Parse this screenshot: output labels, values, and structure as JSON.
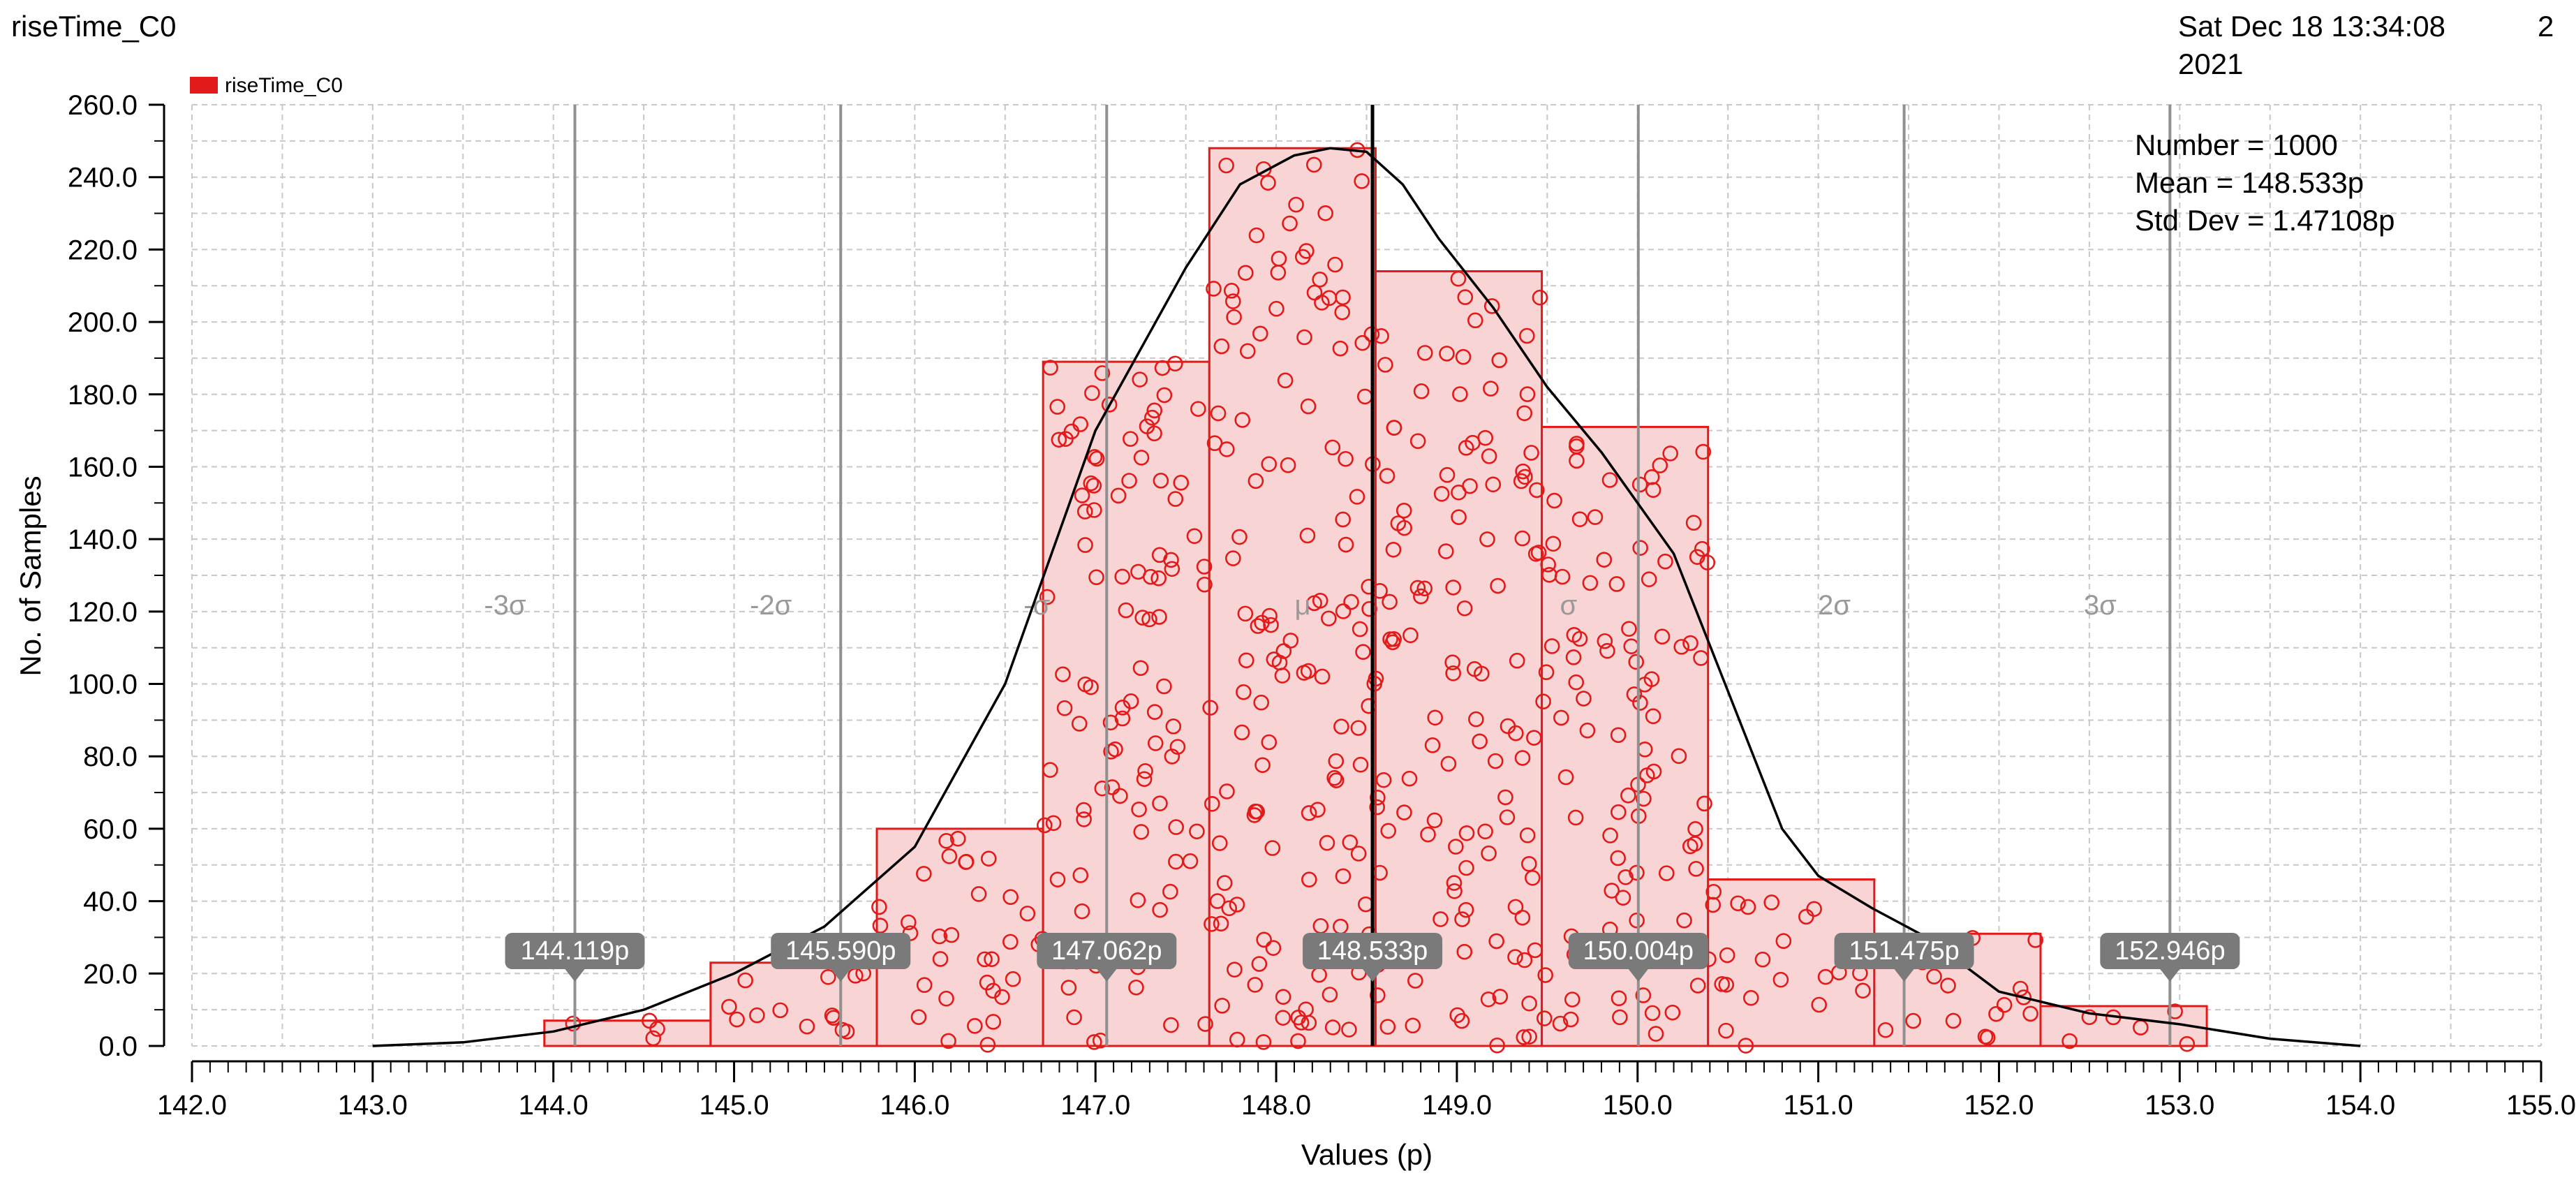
{
  "header": {
    "title": "riseTime_C0",
    "datetime_line1": "Sat Dec 18 13:34:08",
    "datetime_line2": "2021",
    "page_number": "2"
  },
  "stats": {
    "number": "Number = 1000",
    "mean": "Mean = 148.533p",
    "std_dev": "Std Dev = 1.47108p"
  },
  "colors": {
    "bar_fill": "#f8d4d4",
    "bar_stroke": "#e31a1a",
    "sample": "#e31a1a",
    "curve": "#000000",
    "sigma_line": "#909090",
    "mean_line": "#000000",
    "flag": "#7a7a7a"
  },
  "chart_data": {
    "type": "bar",
    "xlabel": "Values (p)",
    "ylabel": "No. of Samples",
    "xlim": [
      142.0,
      155.0
    ],
    "ylim": [
      0,
      260
    ],
    "x_ticks": [
      "142.0",
      "143.0",
      "144.0",
      "145.0",
      "146.0",
      "147.0",
      "148.0",
      "149.0",
      "150.0",
      "151.0",
      "152.0",
      "153.0",
      "154.0",
      "155.0"
    ],
    "y_ticks": [
      "0.0",
      "20.0",
      "40.0",
      "60.0",
      "80.0",
      "100.0",
      "120.0",
      "140.0",
      "160.0",
      "180.0",
      "200.0",
      "220.0",
      "240.0",
      "260.0"
    ],
    "legend": {
      "label": "riseTime_C0",
      "placement": "top-left"
    },
    "grid": true,
    "bins": [
      {
        "start": 143.95,
        "end": 144.87,
        "count": 7
      },
      {
        "start": 144.87,
        "end": 145.79,
        "count": 23
      },
      {
        "start": 145.79,
        "end": 146.71,
        "count": 60
      },
      {
        "start": 146.71,
        "end": 147.63,
        "count": 189
      },
      {
        "start": 147.63,
        "end": 148.55,
        "count": 248
      },
      {
        "start": 148.55,
        "end": 149.47,
        "count": 214
      },
      {
        "start": 149.47,
        "end": 150.39,
        "count": 171
      },
      {
        "start": 150.39,
        "end": 151.31,
        "count": 46
      },
      {
        "start": 151.31,
        "end": 152.23,
        "count": 31
      },
      {
        "start": 152.23,
        "end": 153.15,
        "count": 11
      }
    ],
    "density_curve": {
      "x": [
        143.0,
        143.5,
        144.0,
        144.5,
        145.0,
        145.5,
        146.0,
        146.5,
        147.0,
        147.5,
        147.8,
        148.1,
        148.3,
        148.5,
        148.7,
        148.9,
        149.2,
        149.5,
        149.8,
        150.2,
        150.5,
        150.8,
        151.0,
        151.3,
        151.6,
        152.0,
        152.5,
        153.0,
        153.5,
        154.0
      ],
      "y": [
        0,
        1,
        4,
        10,
        20,
        33,
        55,
        100,
        170,
        215,
        238,
        246,
        248,
        247,
        238,
        223,
        204,
        182,
        164,
        136,
        98,
        60,
        47,
        38,
        30,
        15,
        9,
        6,
        2,
        0
      ]
    },
    "sigma_markers": [
      {
        "label": "-3σ",
        "value": 144.119,
        "flag": "144.119p"
      },
      {
        "label": "-2σ",
        "value": 145.59,
        "flag": "145.590p"
      },
      {
        "label": "-σ",
        "value": 147.062,
        "flag": "147.062p"
      },
      {
        "label": "μ",
        "value": 148.533,
        "flag": "148.533p"
      },
      {
        "label": "σ",
        "value": 150.004,
        "flag": "150.004p"
      },
      {
        "label": "2σ",
        "value": 151.475,
        "flag": "151.475p"
      },
      {
        "label": "3σ",
        "value": 152.946,
        "flag": "152.946p"
      }
    ]
  }
}
